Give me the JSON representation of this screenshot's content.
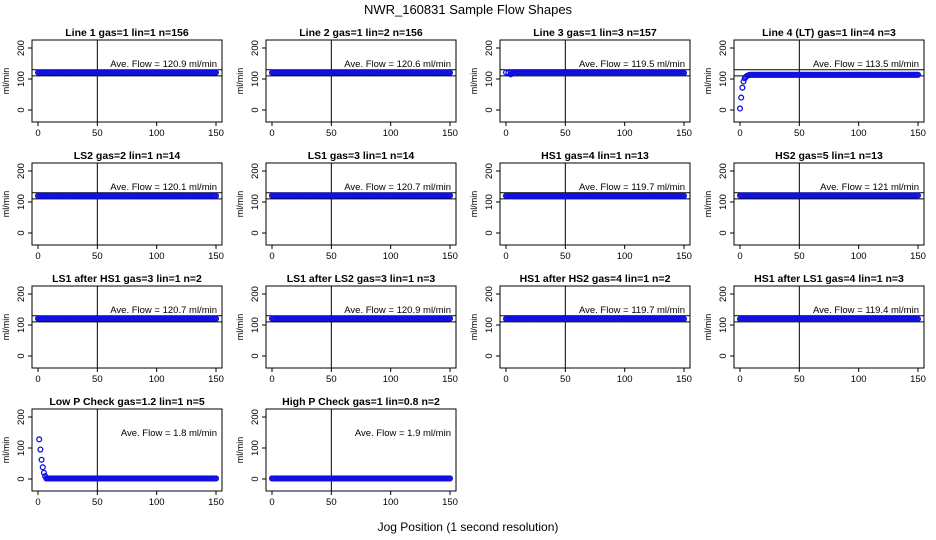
{
  "figure": {
    "title": "NWR_160831  Sample Flow Shapes",
    "xlabel": "Jog Position (1 second resolution)"
  },
  "colors": {
    "points": "#1010e0",
    "axes": "#000000",
    "background": "#ffffff"
  },
  "chart_data": [
    {
      "type": "scatter",
      "title": "Line 1 gas=1 lin=1 n=156",
      "ylabel": "ml/min",
      "annotation": "Ave. Flow = 120.9  ml/min",
      "mean": 120.9,
      "xlim": [
        0,
        150
      ],
      "ylim": [
        0,
        200
      ],
      "xticks": [
        0,
        50,
        100,
        150
      ],
      "yticks": [
        0,
        100,
        200
      ],
      "vline": 50,
      "hlines": [
        110,
        130
      ],
      "x_range": [
        0,
        150
      ],
      "steady_value": 120.9,
      "startup": []
    },
    {
      "type": "scatter",
      "title": "Line 2 gas=1 lin=2 n=156",
      "ylabel": "ml/min",
      "annotation": "Ave. Flow = 120.6  ml/min",
      "mean": 120.6,
      "xlim": [
        0,
        150
      ],
      "ylim": [
        0,
        200
      ],
      "xticks": [
        0,
        50,
        100,
        150
      ],
      "yticks": [
        0,
        100,
        200
      ],
      "vline": 50,
      "hlines": [
        110,
        130
      ],
      "x_range": [
        0,
        150
      ],
      "steady_value": 120.6,
      "startup": []
    },
    {
      "type": "scatter",
      "title": "Line 3 gas=1 lin=3 n=157",
      "ylabel": "ml/min",
      "annotation": "Ave. Flow = 119.5  ml/min",
      "mean": 119.5,
      "xlim": [
        0,
        150
      ],
      "ylim": [
        0,
        200
      ],
      "xticks": [
        0,
        50,
        100,
        150
      ],
      "yticks": [
        0,
        100,
        200
      ],
      "vline": 50,
      "hlines": [
        110,
        130
      ],
      "x_range": [
        5,
        150
      ],
      "steady_value": 119.5,
      "startup": [
        [
          0,
          121
        ],
        [
          2,
          120
        ],
        [
          4,
          115
        ]
      ]
    },
    {
      "type": "scatter",
      "title": "Line 4 (LT) gas=1 lin=4 n=3",
      "ylabel": "ml/min",
      "annotation": "Ave. Flow = 113.5  ml/min",
      "mean": 113.5,
      "xlim": [
        0,
        150
      ],
      "ylim": [
        0,
        200
      ],
      "xticks": [
        0,
        50,
        100,
        150
      ],
      "yticks": [
        0,
        100,
        200
      ],
      "vline": 50,
      "hlines": [
        110,
        130
      ],
      "x_range": [
        9,
        150
      ],
      "steady_value": 113.5,
      "startup": [
        [
          0,
          5
        ],
        [
          1,
          40
        ],
        [
          2,
          72
        ],
        [
          3,
          92
        ],
        [
          4,
          102
        ],
        [
          5,
          107
        ],
        [
          6,
          110
        ],
        [
          7,
          112
        ],
        [
          8,
          113
        ]
      ]
    },
    {
      "type": "scatter",
      "title": "LS2 gas=2 lin=1 n=14",
      "ylabel": "ml/min",
      "annotation": "Ave. Flow = 120.1  ml/min",
      "mean": 120.1,
      "xlim": [
        0,
        150
      ],
      "ylim": [
        0,
        200
      ],
      "xticks": [
        0,
        50,
        100,
        150
      ],
      "yticks": [
        0,
        100,
        200
      ],
      "vline": 50,
      "hlines": [
        110,
        130
      ],
      "x_range": [
        0,
        150
      ],
      "steady_value": 120.1,
      "startup": []
    },
    {
      "type": "scatter",
      "title": "LS1 gas=3 lin=1 n=14",
      "ylabel": "ml/min",
      "annotation": "Ave. Flow = 120.7  ml/min",
      "mean": 120.7,
      "xlim": [
        0,
        150
      ],
      "ylim": [
        0,
        200
      ],
      "xticks": [
        0,
        50,
        100,
        150
      ],
      "yticks": [
        0,
        100,
        200
      ],
      "vline": 50,
      "hlines": [
        110,
        130
      ],
      "x_range": [
        0,
        150
      ],
      "steady_value": 120.7,
      "startup": []
    },
    {
      "type": "scatter",
      "title": "HS1 gas=4 lin=1 n=13",
      "ylabel": "ml/min",
      "annotation": "Ave. Flow = 119.7  ml/min",
      "mean": 119.7,
      "xlim": [
        0,
        150
      ],
      "ylim": [
        0,
        200
      ],
      "xticks": [
        0,
        50,
        100,
        150
      ],
      "yticks": [
        0,
        100,
        200
      ],
      "vline": 50,
      "hlines": [
        110,
        130
      ],
      "x_range": [
        0,
        150
      ],
      "steady_value": 119.7,
      "startup": []
    },
    {
      "type": "scatter",
      "title": "HS2 gas=5 lin=1 n=13",
      "ylabel": "ml/min",
      "annotation": "Ave. Flow = 121  ml/min",
      "mean": 121,
      "xlim": [
        0,
        150
      ],
      "ylim": [
        0,
        200
      ],
      "xticks": [
        0,
        50,
        100,
        150
      ],
      "yticks": [
        0,
        100,
        200
      ],
      "vline": 50,
      "hlines": [
        110,
        130
      ],
      "x_range": [
        0,
        150
      ],
      "steady_value": 121,
      "startup": []
    },
    {
      "type": "scatter",
      "title": "LS1 after HS1 gas=3 lin=1 n=2",
      "ylabel": "ml/min",
      "annotation": "Ave. Flow = 120.7  ml/min",
      "mean": 120.7,
      "xlim": [
        0,
        150
      ],
      "ylim": [
        0,
        200
      ],
      "xticks": [
        0,
        50,
        100,
        150
      ],
      "yticks": [
        0,
        100,
        200
      ],
      "vline": 50,
      "hlines": [
        110,
        130
      ],
      "x_range": [
        0,
        150
      ],
      "steady_value": 120.7,
      "startup": []
    },
    {
      "type": "scatter",
      "title": "LS1 after LS2 gas=3 lin=1 n=3",
      "ylabel": "ml/min",
      "annotation": "Ave. Flow = 120.9  ml/min",
      "mean": 120.9,
      "xlim": [
        0,
        150
      ],
      "ylim": [
        0,
        200
      ],
      "xticks": [
        0,
        50,
        100,
        150
      ],
      "yticks": [
        0,
        100,
        200
      ],
      "vline": 50,
      "hlines": [
        110,
        130
      ],
      "x_range": [
        0,
        150
      ],
      "steady_value": 120.9,
      "startup": []
    },
    {
      "type": "scatter",
      "title": "HS1 after HS2 gas=4 lin=1 n=2",
      "ylabel": "ml/min",
      "annotation": "Ave. Flow = 119.7  ml/min",
      "mean": 119.7,
      "xlim": [
        0,
        150
      ],
      "ylim": [
        0,
        200
      ],
      "xticks": [
        0,
        50,
        100,
        150
      ],
      "yticks": [
        0,
        100,
        200
      ],
      "vline": 50,
      "hlines": [
        110,
        130
      ],
      "x_range": [
        0,
        150
      ],
      "steady_value": 119.7,
      "startup": []
    },
    {
      "type": "scatter",
      "title": "HS1 after LS1 gas=4 lin=1 n=3",
      "ylabel": "ml/min",
      "annotation": "Ave. Flow = 119.4  ml/min",
      "mean": 119.4,
      "xlim": [
        0,
        150
      ],
      "ylim": [
        0,
        200
      ],
      "xticks": [
        0,
        50,
        100,
        150
      ],
      "yticks": [
        0,
        100,
        200
      ],
      "vline": 50,
      "hlines": [
        110,
        130
      ],
      "x_range": [
        0,
        150
      ],
      "steady_value": 119.4,
      "startup": []
    },
    {
      "type": "scatter",
      "title": "Low P Check gas=1.2 lin=1 n=5",
      "ylabel": "ml/min",
      "annotation": "Ave. Flow = 1.8  ml/min",
      "mean": 1.8,
      "xlim": [
        0,
        150
      ],
      "ylim": [
        0,
        200
      ],
      "xticks": [
        0,
        50,
        100,
        150
      ],
      "yticks": [
        0,
        100,
        200
      ],
      "vline": 50,
      "hlines": [],
      "x_range": [
        7,
        150
      ],
      "steady_value": 1.8,
      "startup": [
        [
          1,
          128
        ],
        [
          2,
          95
        ],
        [
          3,
          62
        ],
        [
          4,
          38
        ],
        [
          5,
          20
        ],
        [
          6,
          9
        ]
      ]
    },
    {
      "type": "scatter",
      "title": "High P Check gas=1 lin=0.8 n=2",
      "ylabel": "ml/min",
      "annotation": "Ave. Flow = 1.9  ml/min",
      "mean": 1.9,
      "xlim": [
        0,
        150
      ],
      "ylim": [
        0,
        200
      ],
      "xticks": [
        0,
        50,
        100,
        150
      ],
      "yticks": [
        0,
        100,
        200
      ],
      "vline": 50,
      "hlines": [],
      "x_range": [
        0,
        150
      ],
      "steady_value": 1.9,
      "startup": []
    }
  ]
}
